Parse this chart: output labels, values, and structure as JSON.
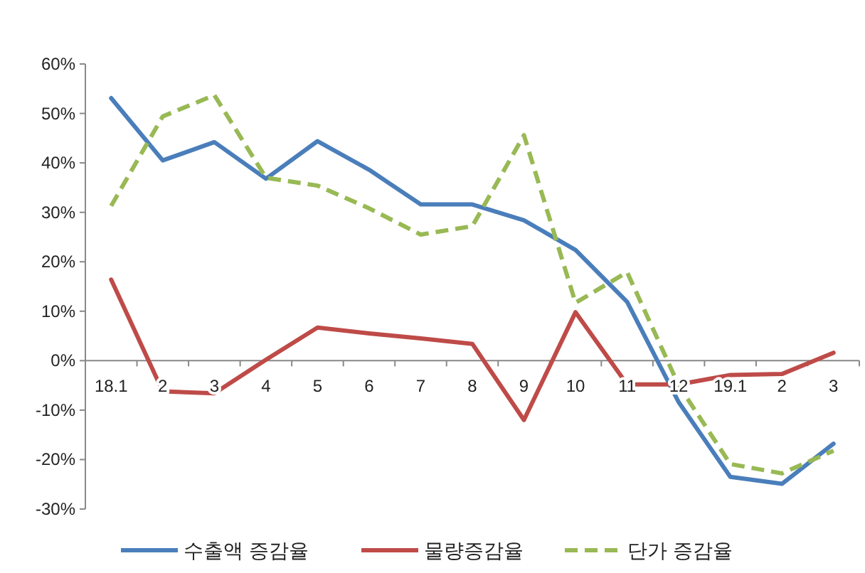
{
  "chart_data": {
    "type": "line",
    "categories": [
      "18.1",
      "2",
      "3",
      "4",
      "5",
      "6",
      "7",
      "8",
      "9",
      "10",
      "11",
      "12",
      "19.1",
      "2",
      "3"
    ],
    "series": [
      {
        "name": "수출액 증감율",
        "color": "#4a7ebb",
        "line_style": "solid",
        "values": [
          53.1,
          40.5,
          44.2,
          36.8,
          44.4,
          38.6,
          31.6,
          31.6,
          28.4,
          22.4,
          11.9,
          -8.4,
          -23.5,
          -24.9,
          -16.8
        ]
      },
      {
        "name": "물량증감율",
        "color": "#be4b48",
        "line_style": "solid",
        "values": [
          16.4,
          -6.2,
          -6.6,
          0.2,
          6.7,
          5.5,
          4.5,
          3.4,
          -12.0,
          9.8,
          -4.8,
          -4.8,
          -2.9,
          -2.7,
          1.6
        ]
      },
      {
        "name": "단가 증감율",
        "color": "#98b954",
        "line_style": "dashed",
        "values": [
          31.3,
          49.4,
          53.7,
          37.0,
          35.4,
          30.8,
          25.5,
          27.2,
          45.6,
          11.7,
          17.9,
          -5.0,
          -20.9,
          -22.8,
          -18.2
        ]
      }
    ],
    "ylim": [
      -30,
      60
    ],
    "yticks": [
      {
        "value": -30,
        "label": "-30%"
      },
      {
        "value": -20,
        "label": "-20%"
      },
      {
        "value": -10,
        "label": "-10%"
      },
      {
        "value": 0,
        "label": "0%"
      },
      {
        "value": 10,
        "label": "10%"
      },
      {
        "value": 20,
        "label": "20%"
      },
      {
        "value": 30,
        "label": "30%"
      },
      {
        "value": 40,
        "label": "40%"
      },
      {
        "value": 50,
        "label": "50%"
      },
      {
        "value": 60,
        "label": "60%"
      }
    ],
    "grid": false,
    "legend": "bottom"
  }
}
